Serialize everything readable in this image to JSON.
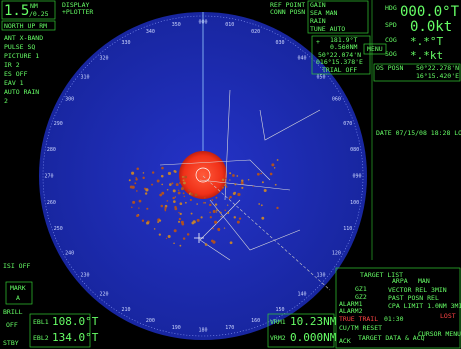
{
  "header": {
    "range": "1.5",
    "range_unit": "NM",
    "ring_interval": "/0.25",
    "display": "DISPLAY",
    "plotter": "+PLOTTER",
    "orientation": "NORTH UP RM"
  },
  "left_panel": [
    "ANT X-BAND",
    "PULSE SQ",
    "PICTURE 1",
    "IR 2",
    "ES OFF",
    "EAV 1",
    "AUTO RAIN",
    "2"
  ],
  "top_panel": {
    "ref_point": "REF POINT",
    "conn_posn": "CONN POSN",
    "gain": "GAIN",
    "sea": "SEA MAN",
    "rain": "RAIN",
    "tune": "TUNE AUTO"
  },
  "cursor": {
    "bearing": "181.9°T",
    "range": "0.560NM",
    "lat": "50°22.074'N",
    "lon": "016°15.378'E",
    "trial": "TRIAL OFF"
  },
  "own_ship": {
    "hdg_label": "HDG",
    "hdg": "000.0°T",
    "spd_label": "SPD",
    "spd": "0.0kt",
    "cog_label": "COG",
    "cog": "*.*°T",
    "sog_label": "SOG",
    "sog": "*.*kt",
    "posn_label": "OS POSN",
    "lat": "50°22.278'N",
    "lon": "16°15.420'E"
  },
  "menu": "MENU",
  "date": "DATE 07/15/08 18:28 LOCAL",
  "bearings": [
    "000",
    "010",
    "020",
    "030",
    "040",
    "050",
    "060",
    "070",
    "080",
    "090",
    "100",
    "110",
    "120",
    "130",
    "140",
    "150",
    "160",
    "170",
    "180",
    "190",
    "200",
    "210",
    "220",
    "230",
    "240",
    "250",
    "260",
    "270",
    "280",
    "290",
    "300",
    "310",
    "320",
    "330",
    "340",
    "350"
  ],
  "bottom_left": {
    "isi": "ISI OFF",
    "mark": "MARK",
    "mark_value": "A",
    "brill": "BRILL",
    "off": "OFF",
    "stby": "STBY",
    "ebl1": "EBL1",
    "ebl1_value": "108.0°T",
    "ebl2": "EBL2",
    "ebl2_value": "134.0°T"
  },
  "vrm": {
    "vrm1": "VRM1",
    "vrm1_value": "10.23NM",
    "vrm2": "VRM2",
    "vrm2_value": "0.000NM"
  },
  "bottom_right": {
    "target_list": "TARGET LIST",
    "arpa": "ARPA",
    "man": "MAN",
    "vector": "VECTOR REL 3MIN",
    "past_posn": "PAST POSN REL",
    "cpa": "CPA LIMIT 1.0NM 3MIN",
    "gz1": "GZ1",
    "gz2": "GZ2",
    "alarm1": "ALARM1",
    "alarm2": "ALARM2",
    "true_trail": "TRUE TRAIL",
    "trail_time": "01:30",
    "lost": "LOST",
    "cu_tm": "CU/TM RESET",
    "ack": "ACK",
    "target_data": "TARGET DATA & ACQ",
    "cursor_menu": "CURSOR MENU"
  }
}
